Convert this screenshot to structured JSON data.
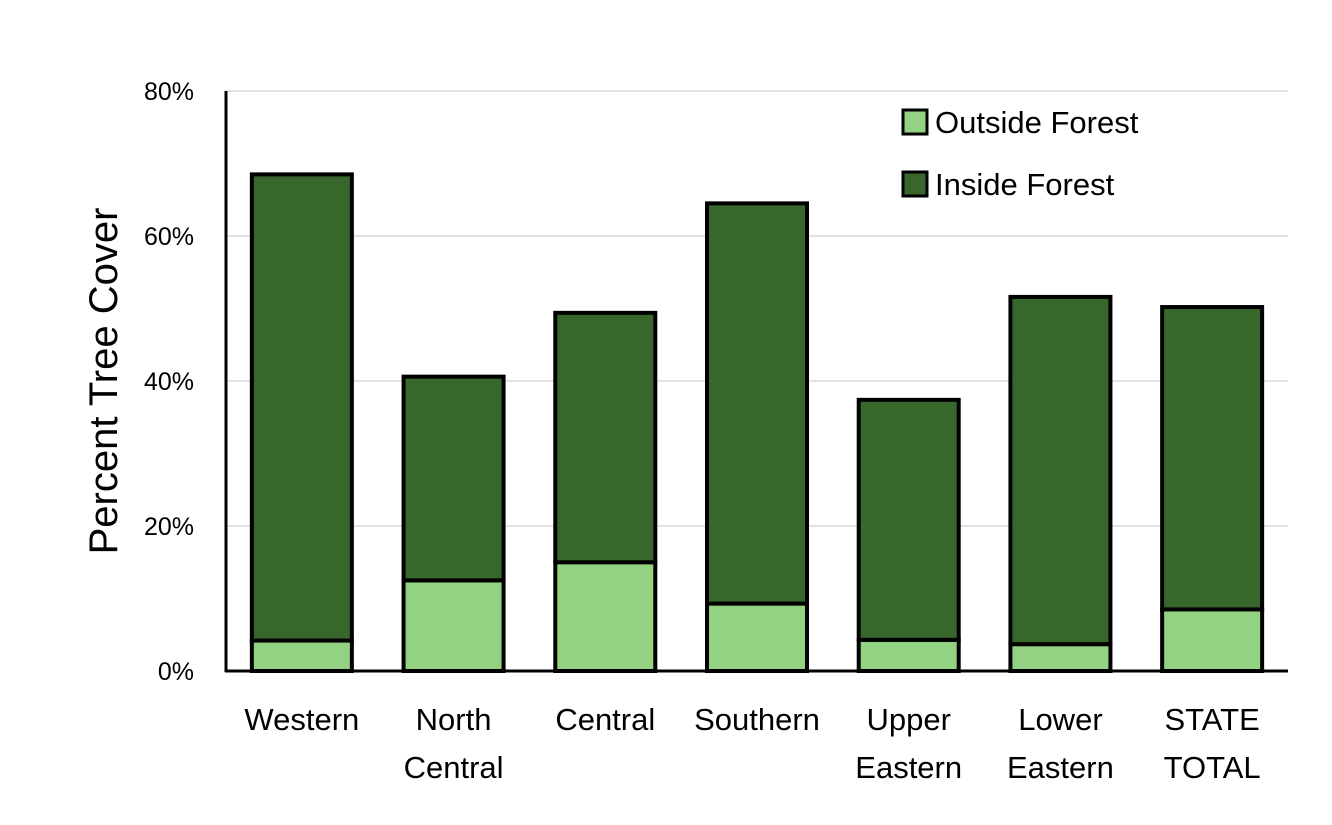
{
  "chart_data": {
    "type": "bar",
    "stacked": true,
    "title": "",
    "xlabel": "",
    "ylabel": "Percent Tree Cover",
    "ylim": [
      0,
      80
    ],
    "y_ticks": [
      "0%",
      "20%",
      "40%",
      "60%",
      "80%"
    ],
    "grid": true,
    "legend_position": "top-right",
    "categories": [
      [
        "Western"
      ],
      [
        "North",
        "Central"
      ],
      [
        "Central"
      ],
      [
        "Southern"
      ],
      [
        "Upper",
        "Eastern"
      ],
      [
        "Lower",
        "Eastern"
      ],
      [
        "STATE",
        "TOTAL"
      ]
    ],
    "series": [
      {
        "name": "Outside Forest",
        "color": "#93d282",
        "values": [
          4.2,
          12.5,
          15.0,
          9.3,
          4.3,
          3.7,
          8.5
        ]
      },
      {
        "name": "Inside Forest",
        "color": "#38672b",
        "values": [
          64.3,
          28.1,
          34.4,
          55.2,
          33.1,
          47.9,
          41.7
        ]
      }
    ],
    "legend_order": [
      0,
      1
    ],
    "colors": {
      "gridline": "#d9d9d9",
      "axis": "#000000",
      "bar_edge": "#000000"
    }
  }
}
